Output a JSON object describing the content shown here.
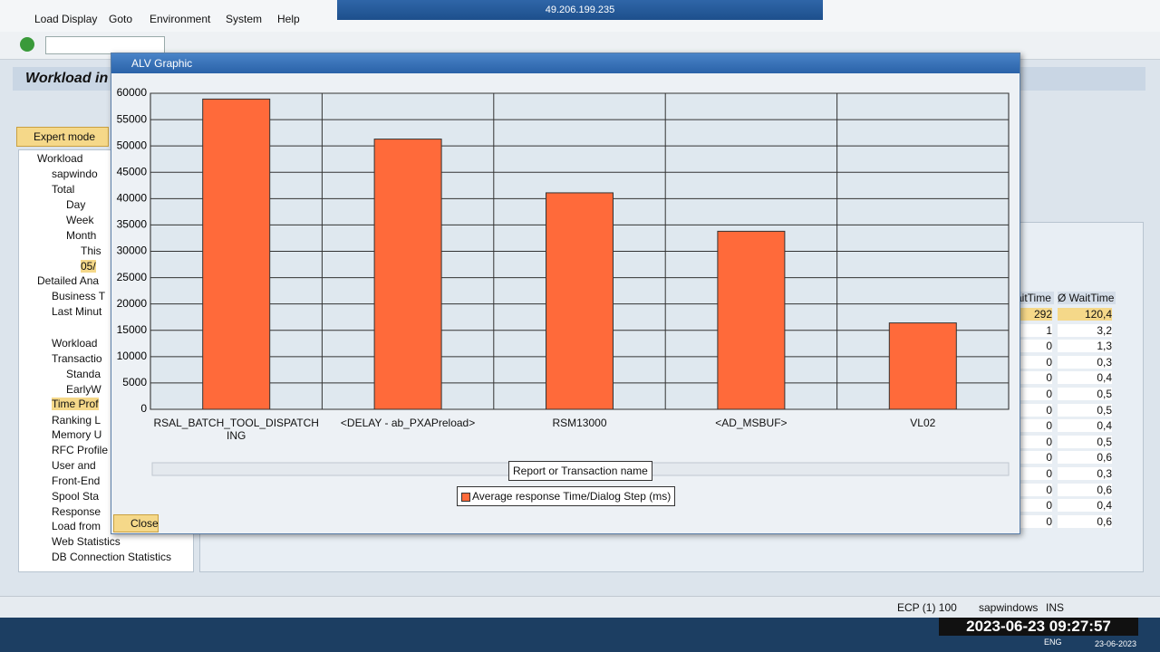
{
  "menu": [
    "Load Display",
    "Goto",
    "Environment",
    "System",
    "Help"
  ],
  "remote_host": "49.206.199.235",
  "screen_title": "Workload in",
  "expert_mode": "Expert mode",
  "tree": [
    "Workload",
    "sapwindo",
    "Total",
    "Day",
    "Week",
    "Month",
    "This",
    "05/",
    "Detailed Ana",
    "Business T",
    "Last Minut",
    "Workload",
    "Transactio",
    "Standa",
    "EarlyW",
    "Time Prof",
    "Ranking L",
    "Memory U",
    "RFC Profile",
    "User and",
    "Front-End",
    "Spool Sta",
    "Response",
    "Load from",
    "Web Statistics",
    "DB Connection Statistics"
  ],
  "table": {
    "columns": [
      "aitTime",
      "Ø WaitTime"
    ],
    "rows": [
      [
        "292",
        "120,4"
      ],
      [
        "1",
        "3,2"
      ],
      [
        "0",
        "1,3"
      ],
      [
        "0",
        "0,3"
      ],
      [
        "0",
        "0,4"
      ],
      [
        "0",
        "0,5"
      ],
      [
        "0",
        "0,5"
      ],
      [
        "0",
        "0,4"
      ],
      [
        "0",
        "0,5"
      ],
      [
        "0",
        "0,6"
      ],
      [
        "0",
        "0,3"
      ],
      [
        "0",
        "0,6"
      ],
      [
        "0",
        "0,4"
      ],
      [
        "0",
        "0,6"
      ]
    ]
  },
  "popup": {
    "title": "ALV Graphic",
    "close": "Close"
  },
  "chart_data": {
    "type": "bar",
    "categories": [
      "RSAL_BATCH_TOOL_DISPATCHING",
      "<DELAY - ab_PXAPreload>",
      "RSM13000",
      "<AD_MSBUF>",
      "VL02"
    ],
    "series": [
      {
        "name": "Average response Time/Dialog Step (ms)",
        "color": "#ff6a3a",
        "values": [
          58900,
          51300,
          41100,
          33800,
          16400
        ]
      }
    ],
    "x_label": "Report or Transaction name",
    "ylim": [
      0,
      60000
    ],
    "yticks": [
      0,
      5000,
      10000,
      15000,
      20000,
      25000,
      30000,
      35000,
      40000,
      45000,
      50000,
      55000,
      60000
    ],
    "grid": true
  },
  "status": {
    "system": "ECP (1) 100",
    "server": "sapwindows",
    "mode": "INS"
  },
  "taskbar": {
    "datetime": "2023-06-23  09:27:57",
    "lang": "ENG",
    "date": "23-06-2023"
  }
}
